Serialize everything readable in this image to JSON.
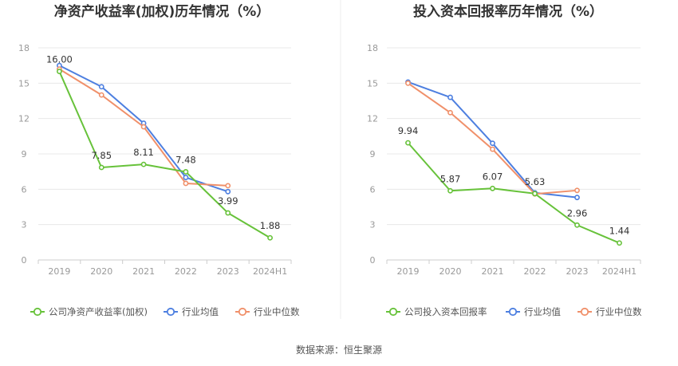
{
  "source": "数据来源：恒生聚源",
  "colors": {
    "company": "#67c23a",
    "avg": "#4d7fe0",
    "median": "#f0906a",
    "grid": "#e8e8e8",
    "axis": "#cccccc"
  },
  "chart_data": [
    {
      "type": "line",
      "title": "净资产收益率(加权)历年情况（%）",
      "categories": [
        "2019",
        "2020",
        "2021",
        "2022",
        "2023",
        "2024H1"
      ],
      "ylim": [
        0,
        18
      ],
      "yticks": [
        0,
        3,
        6,
        9,
        12,
        15,
        18
      ],
      "grid": true,
      "legend_position": "bottom",
      "series": [
        {
          "name": "公司净资产收益率(加权)",
          "color": "#67c23a",
          "values": [
            16.0,
            7.85,
            8.11,
            7.48,
            3.99,
            1.88
          ],
          "labels": [
            "16.00",
            "7.85",
            "8.11",
            "7.48",
            "3.99",
            "1.88"
          ]
        },
        {
          "name": "行业均值",
          "color": "#4d7fe0",
          "values": [
            16.5,
            14.7,
            11.6,
            7.0,
            5.8,
            null
          ]
        },
        {
          "name": "行业中位数",
          "color": "#f0906a",
          "values": [
            16.2,
            14.0,
            11.3,
            6.5,
            6.3,
            null
          ]
        }
      ]
    },
    {
      "type": "line",
      "title": "投入资本回报率历年情况（%）",
      "categories": [
        "2019",
        "2020",
        "2021",
        "2022",
        "2023",
        "2024H1"
      ],
      "ylim": [
        0,
        18
      ],
      "yticks": [
        0,
        3,
        6,
        9,
        12,
        15,
        18
      ],
      "grid": true,
      "legend_position": "bottom",
      "series": [
        {
          "name": "公司投入资本回报率",
          "color": "#67c23a",
          "values": [
            9.94,
            5.87,
            6.07,
            5.63,
            2.96,
            1.44
          ],
          "labels": [
            "9.94",
            "5.87",
            "6.07",
            "5.63",
            "2.96",
            "1.44"
          ]
        },
        {
          "name": "行业均值",
          "color": "#4d7fe0",
          "values": [
            15.1,
            13.8,
            9.9,
            5.7,
            5.3,
            null
          ]
        },
        {
          "name": "行业中位数",
          "color": "#f0906a",
          "values": [
            15.0,
            12.5,
            9.4,
            5.6,
            5.9,
            null
          ]
        }
      ]
    }
  ]
}
